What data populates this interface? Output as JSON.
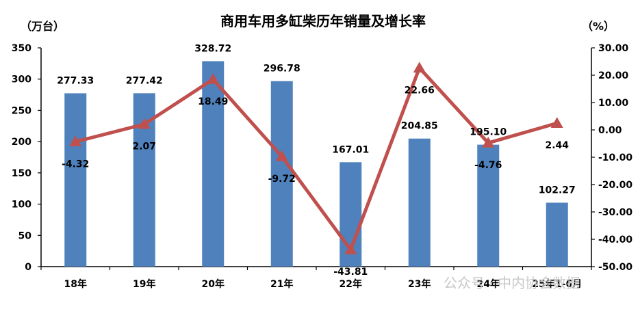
{
  "chart_data": {
    "type": "bar",
    "title": "商用车用多缸柴历年销量及增长率",
    "left_unit": "（万台）",
    "right_unit": "（%）",
    "categories": [
      "18年",
      "19年",
      "20年",
      "21年",
      "22年",
      "23年",
      "24年",
      "25年1-6月"
    ],
    "series": [
      {
        "type": "bar",
        "axis": "left",
        "values": [
          277.33,
          277.42,
          328.72,
          296.78,
          167.01,
          204.85,
          195.1,
          102.27
        ],
        "labels": [
          "277.33",
          "277.42",
          "328.72",
          "296.78",
          "167.01",
          "204.85",
          "195.10",
          "102.27"
        ],
        "color": "#4f81bd"
      },
      {
        "type": "line",
        "axis": "right",
        "marker": "triangle",
        "values": [
          -4.32,
          2.07,
          18.49,
          -9.72,
          -43.81,
          22.66,
          -4.76,
          2.44
        ],
        "labels": [
          "-4.32",
          "2.07",
          "18.49",
          "-9.72",
          "-43.81",
          "22.66",
          "-4.76",
          "2.44"
        ],
        "color": "#c0504d"
      }
    ],
    "y_left": {
      "min": 0,
      "max": 350,
      "step": 50,
      "ticks": [
        "0",
        "50",
        "100",
        "150",
        "200",
        "250",
        "300",
        "350"
      ]
    },
    "y_right": {
      "min": -50,
      "max": 30,
      "step": 10,
      "ticks": [
        "-50.00",
        "-40.00",
        "-30.00",
        "-20.00",
        "-10.00",
        "0.00",
        "10.00",
        "20.00",
        "30.00"
      ]
    },
    "grid": false,
    "legend": "none"
  },
  "watermark": "公众号 · 中内协会数据"
}
